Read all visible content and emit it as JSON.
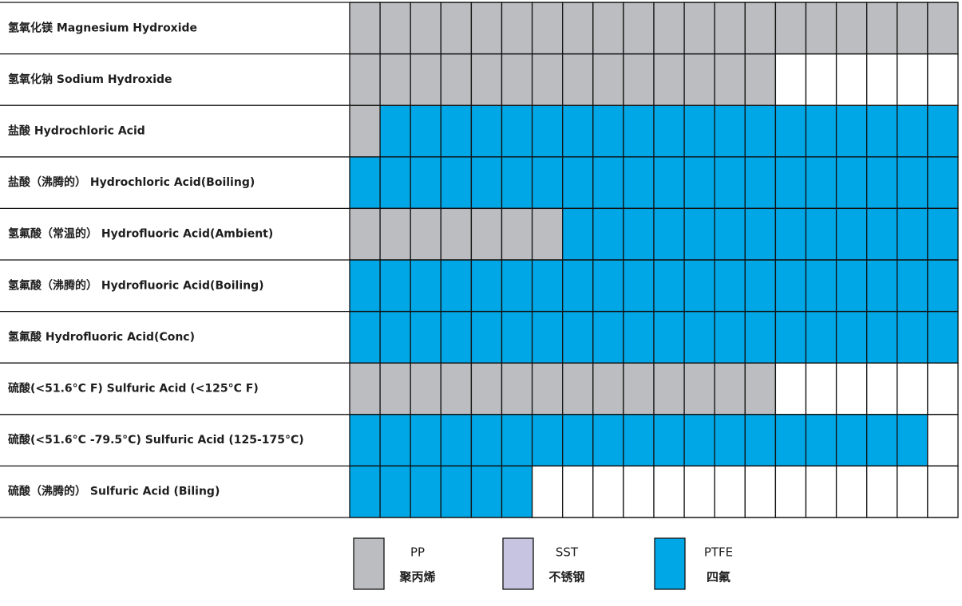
{
  "table": {
    "columns": 20,
    "rows": [
      {
        "label": "氢氧化镁 Magnesium Hydroxide",
        "cells": [
          0,
          0,
          0,
          0,
          0,
          0,
          0,
          0,
          0,
          0,
          0,
          0,
          0,
          0,
          0,
          0,
          0,
          0,
          0,
          0
        ]
      },
      {
        "label": "氢氧化钠 Sodium Hydroxide",
        "cells": [
          0,
          0,
          0,
          0,
          0,
          0,
          0,
          0,
          0,
          0,
          0,
          0,
          0,
          0,
          null,
          null,
          null,
          null,
          null,
          null
        ]
      },
      {
        "label": "盐酸 Hydrochloric Acid",
        "cells": [
          0,
          2,
          2,
          2,
          2,
          2,
          2,
          2,
          2,
          2,
          2,
          2,
          2,
          2,
          2,
          2,
          2,
          2,
          2,
          2
        ]
      },
      {
        "label": "盐酸（沸腾的） Hydrochloric Acid(Boiling)",
        "cells": [
          2,
          2,
          2,
          2,
          2,
          2,
          2,
          2,
          2,
          2,
          2,
          2,
          2,
          2,
          2,
          2,
          2,
          2,
          2,
          2
        ]
      },
      {
        "label": "氢氟酸（常温的） Hydrofluoric Acid(Ambient)",
        "cells": [
          0,
          0,
          0,
          0,
          0,
          0,
          0,
          2,
          2,
          2,
          2,
          2,
          2,
          2,
          2,
          2,
          2,
          2,
          2,
          2
        ]
      },
      {
        "label": "氢氟酸（沸腾的） Hydrofluoric Acid(Boiling)",
        "cells": [
          2,
          2,
          2,
          2,
          2,
          2,
          2,
          2,
          2,
          2,
          2,
          2,
          2,
          2,
          2,
          2,
          2,
          2,
          2,
          2
        ]
      },
      {
        "label": "氢氟酸 Hydrofluoric Acid(Conc)",
        "cells": [
          2,
          2,
          2,
          2,
          2,
          2,
          2,
          2,
          2,
          2,
          2,
          2,
          2,
          2,
          2,
          2,
          2,
          2,
          2,
          2
        ]
      },
      {
        "label": "硫酸(<51.6°C F) Sulfuric Acid (<125°C F)",
        "cells": [
          0,
          0,
          0,
          0,
          0,
          0,
          0,
          0,
          0,
          0,
          0,
          0,
          0,
          0,
          null,
          null,
          null,
          null,
          null,
          null
        ]
      },
      {
        "label": "硫酸(<51.6°C -79.5°C) Sulfuric Acid (125-175°C)",
        "cells": [
          2,
          2,
          2,
          2,
          2,
          2,
          2,
          2,
          2,
          2,
          2,
          2,
          2,
          2,
          2,
          2,
          2,
          2,
          2,
          null
        ]
      },
      {
        "label": "硫酸（沸腾的） Sulfuric Acid (Biling)",
        "cells": [
          2,
          2,
          2,
          2,
          2,
          2,
          null,
          null,
          null,
          null,
          null,
          null,
          null,
          null,
          null,
          null,
          null,
          null,
          null,
          null
        ]
      }
    ]
  },
  "legend": [
    {
      "name": "PP",
      "sub": "聚丙烯",
      "color": "#bcbdc0"
    },
    {
      "name": "SST",
      "sub": "不锈钢",
      "color": "#c6c4e1"
    },
    {
      "name": "PTFE",
      "sub": "四氟",
      "color": "#00a7e6"
    }
  ]
}
